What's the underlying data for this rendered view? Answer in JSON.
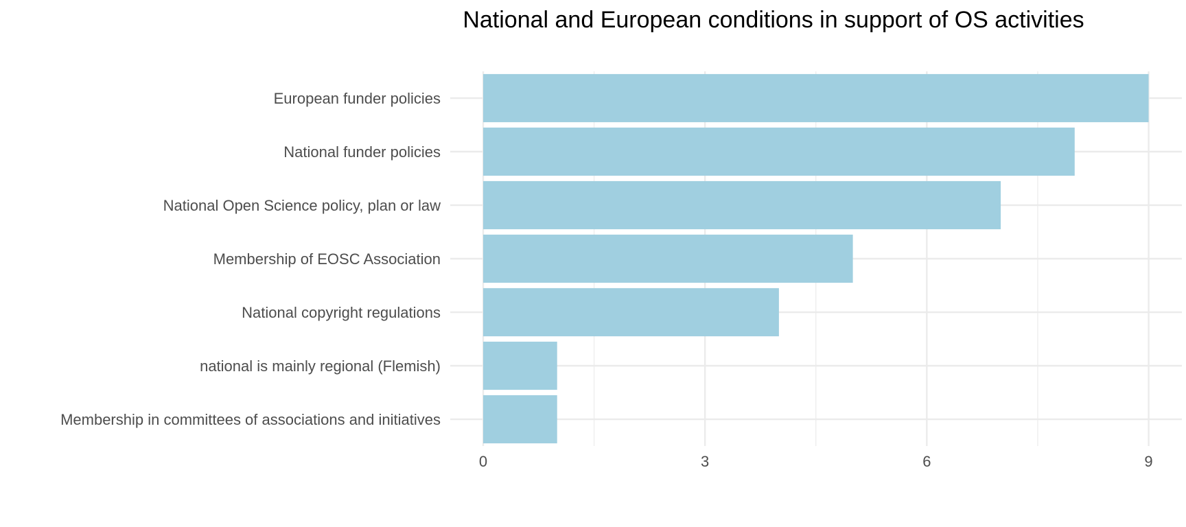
{
  "chart_data": {
    "type": "bar",
    "orientation": "horizontal",
    "title": "National and European conditions in support of OS activities",
    "xlabel": "",
    "ylabel": "",
    "categories": [
      "European funder policies",
      "National funder policies",
      "National Open Science policy, plan or law",
      "Membership of EOSC Association",
      "National copyright regulations",
      "national is mainly regional (Flemish)",
      "Membership in committees of associations and initiatives"
    ],
    "values": [
      9,
      8,
      7,
      5,
      4,
      1,
      1
    ],
    "xlim": [
      0,
      9.45
    ],
    "x_ticks": [
      0,
      3,
      6,
      9
    ],
    "x_tick_labels": [
      "0",
      "3",
      "6",
      "9"
    ],
    "grid": true,
    "legend": "none",
    "bar_color": "#a0cfe0",
    "grid_color": "#ebebeb"
  }
}
